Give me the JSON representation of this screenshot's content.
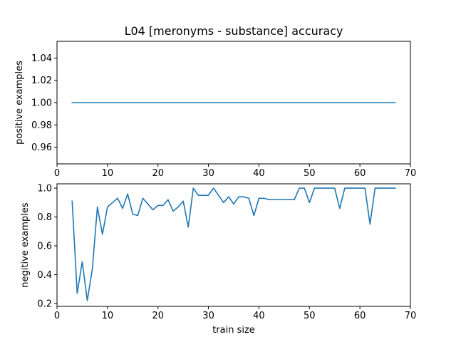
{
  "chart_data": {
    "type": "line",
    "title": "L04 [meronyms - substance] accuracy",
    "color": "#1f77b4",
    "subplots": [
      {
        "ylabel": "positive examples",
        "xlim": [
          0,
          70
        ],
        "ylim": [
          0.945,
          1.055
        ],
        "xticks": [
          0,
          10,
          20,
          30,
          40,
          50,
          60,
          70
        ],
        "yticks": [
          0.96,
          0.98,
          1.0,
          1.02,
          1.04
        ],
        "ytick_labels": [
          "0.96",
          "0.98",
          "1.00",
          "1.02",
          "1.04"
        ],
        "series": [
          {
            "x": [
              3,
              67
            ],
            "y": [
              1.0,
              1.0
            ]
          }
        ]
      },
      {
        "ylabel": "negitive examples",
        "xlabel": "train size",
        "xlim": [
          0,
          70
        ],
        "ylim": [
          0.18,
          1.03
        ],
        "xticks": [
          0,
          10,
          20,
          30,
          40,
          50,
          60,
          70
        ],
        "yticks": [
          0.2,
          0.4,
          0.6,
          0.8,
          1.0
        ],
        "ytick_labels": [
          "0.2",
          "0.4",
          "0.6",
          "0.8",
          "1.0"
        ],
        "series": [
          {
            "x": [
              3,
              4,
              5,
              6,
              7,
              8,
              9,
              10,
              11,
              12,
              13,
              14,
              15,
              16,
              17,
              18,
              19,
              20,
              21,
              22,
              23,
              24,
              25,
              26,
              27,
              28,
              29,
              30,
              31,
              32,
              33,
              34,
              35,
              36,
              37,
              38,
              39,
              40,
              41,
              42,
              43,
              44,
              45,
              46,
              47,
              48,
              49,
              50,
              51,
              52,
              53,
              54,
              55,
              56,
              57,
              58,
              59,
              60,
              61,
              62,
              63,
              64,
              65,
              66,
              67
            ],
            "y": [
              0.91,
              0.27,
              0.49,
              0.22,
              0.44,
              0.87,
              0.68,
              0.87,
              0.9,
              0.93,
              0.86,
              0.96,
              0.82,
              0.81,
              0.93,
              0.89,
              0.85,
              0.88,
              0.88,
              0.92,
              0.84,
              0.87,
              0.91,
              0.73,
              1.0,
              0.95,
              0.95,
              0.95,
              1.0,
              0.95,
              0.9,
              0.94,
              0.89,
              0.94,
              0.94,
              0.93,
              0.81,
              0.93,
              0.93,
              0.92,
              0.92,
              0.92,
              0.92,
              0.92,
              0.92,
              1.0,
              1.0,
              0.9,
              1.0,
              1.0,
              1.0,
              1.0,
              1.0,
              0.86,
              1.0,
              1.0,
              1.0,
              1.0,
              1.0,
              0.75,
              1.0,
              1.0,
              1.0,
              1.0,
              1.0
            ]
          }
        ]
      }
    ]
  }
}
